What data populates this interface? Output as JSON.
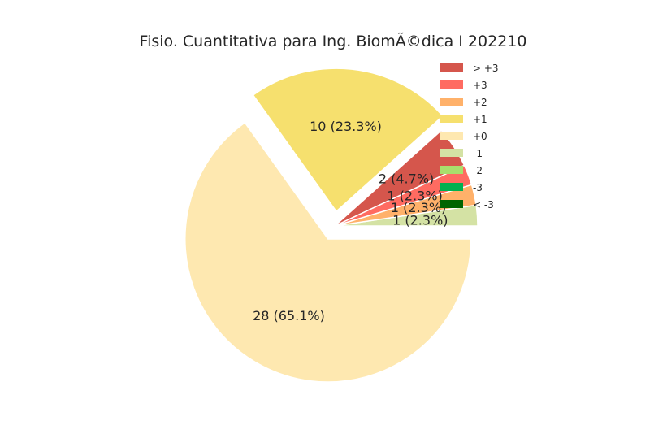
{
  "chart_data": {
    "type": "pie",
    "title": "Fisio. Cuantitativa para Ing. BiomÃ©dica I 202210",
    "legend_position": "top-right",
    "legend": [
      {
        "label": "> +3",
        "color": "#d5564c"
      },
      {
        "label": "+3",
        "color": "#ff6b61"
      },
      {
        "label": "+2",
        "color": "#ffb16a"
      },
      {
        "label": "+1",
        "color": "#f6e06e"
      },
      {
        "label": "+0",
        "color": "#fee8b0"
      },
      {
        "label": "-1",
        "color": "#d4e2a4"
      },
      {
        "label": "-2",
        "color": "#a9df6c"
      },
      {
        "label": "-3",
        "color": "#00b050"
      },
      {
        "label": "< -3",
        "color": "#006400"
      }
    ],
    "slices": [
      {
        "category": "-1",
        "value": 1,
        "label": "1 (2.3%)",
        "color": "#d4e2a4",
        "explode": false
      },
      {
        "category": "+2",
        "value": 1,
        "label": "1 (2.3%)",
        "color": "#ffb16a",
        "explode": false
      },
      {
        "category": "+3",
        "value": 1,
        "label": "1 (2.3%)",
        "color": "#ff6b61",
        "explode": false
      },
      {
        "category": "> +3",
        "value": 2,
        "label": "2 (4.7%)",
        "color": "#d5564c",
        "explode": false
      },
      {
        "category": "+1",
        "value": 10,
        "label": "10 (23.3%)",
        "color": "#f6e06e",
        "explode": true
      },
      {
        "category": "+0",
        "value": 28,
        "label": "28 (65.1%)",
        "color": "#fee8b0",
        "explode": true
      }
    ]
  }
}
